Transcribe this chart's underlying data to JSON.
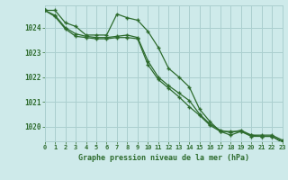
{
  "title": "Graphe pression niveau de la mer (hPa)",
  "background_color": "#ceeaea",
  "grid_color": "#aacfcf",
  "line_color": "#2d6b2d",
  "xlim": [
    0,
    23
  ],
  "ylim": [
    1019.4,
    1024.9
  ],
  "yticks": [
    1020,
    1021,
    1022,
    1023,
    1024
  ],
  "xticks": [
    0,
    1,
    2,
    3,
    4,
    5,
    6,
    7,
    8,
    9,
    10,
    11,
    12,
    13,
    14,
    15,
    16,
    17,
    18,
    19,
    20,
    21,
    22,
    23
  ],
  "series1_x": [
    0,
    1,
    2,
    3,
    4,
    5,
    6,
    7,
    8,
    9,
    10,
    11,
    12,
    13,
    14,
    15,
    16,
    17,
    18,
    19,
    20,
    21,
    22,
    23
  ],
  "series1_y": [
    1024.7,
    1024.7,
    1024.2,
    1024.05,
    1023.7,
    1023.7,
    1023.7,
    1024.55,
    1024.4,
    1024.3,
    1023.85,
    1023.2,
    1022.35,
    1022.0,
    1021.6,
    1020.7,
    1020.2,
    1019.8,
    1019.8,
    1019.8,
    1019.65,
    1019.65,
    1019.65,
    1019.45
  ],
  "series2_x": [
    0,
    1,
    2,
    3,
    4,
    5,
    6,
    7,
    8,
    9,
    10,
    11,
    12,
    13,
    14,
    15,
    16,
    17,
    18,
    19,
    20,
    21,
    22,
    23
  ],
  "series2_y": [
    1024.7,
    1024.5,
    1024.0,
    1023.75,
    1023.65,
    1023.6,
    1023.6,
    1023.65,
    1023.7,
    1023.6,
    1022.65,
    1022.0,
    1021.65,
    1021.35,
    1021.05,
    1020.5,
    1020.1,
    1019.85,
    1019.75,
    1019.85,
    1019.65,
    1019.6,
    1019.6,
    1019.4
  ],
  "series3_x": [
    0,
    1,
    2,
    3,
    4,
    5,
    6,
    7,
    8,
    9,
    10,
    11,
    12,
    13,
    14,
    15,
    16,
    17,
    18,
    19,
    20,
    21,
    22,
    23
  ],
  "series3_y": [
    1024.7,
    1024.45,
    1023.95,
    1023.65,
    1023.6,
    1023.55,
    1023.55,
    1023.6,
    1023.6,
    1023.55,
    1022.5,
    1021.9,
    1021.55,
    1021.2,
    1020.8,
    1020.45,
    1020.05,
    1019.8,
    1019.65,
    1019.8,
    1019.6,
    1019.6,
    1019.6,
    1019.35
  ]
}
